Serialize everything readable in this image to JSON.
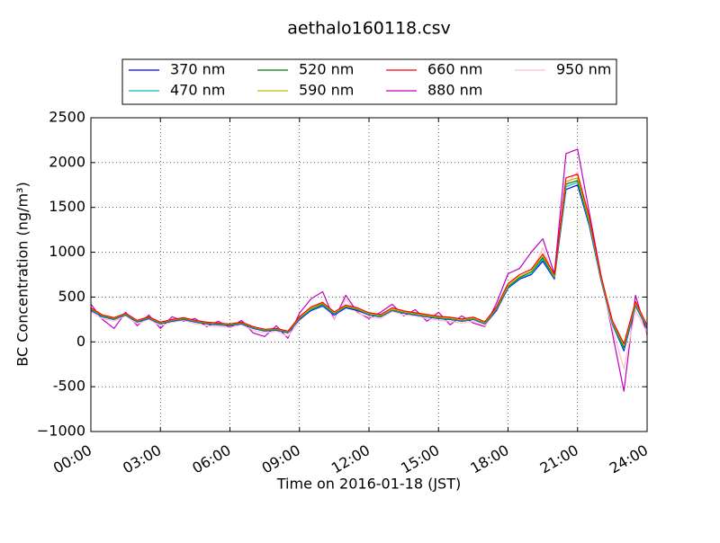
{
  "chart_data": {
    "type": "line",
    "title": "aethalo160118.csv",
    "x_label": "Time on 2016-01-18 (JST)",
    "y_label": "BC Concentration (ng/m³)",
    "x": [
      0,
      0.5,
      1,
      1.5,
      2,
      2.5,
      3,
      3.5,
      4,
      4.5,
      5,
      5.5,
      6,
      6.5,
      7,
      7.5,
      8,
      8.5,
      9,
      9.5,
      10,
      10.5,
      11,
      11.5,
      12,
      12.5,
      13,
      13.5,
      14,
      14.5,
      15,
      15.5,
      16,
      16.5,
      17,
      17.5,
      18,
      18.5,
      19,
      19.5,
      20,
      20.5,
      21,
      21.5,
      22,
      22.5,
      23,
      23.5,
      24
    ],
    "xlim": [
      0,
      24
    ],
    "xticks": [
      {
        "value": 0,
        "label": "00:00"
      },
      {
        "value": 3,
        "label": "03:00"
      },
      {
        "value": 6,
        "label": "06:00"
      },
      {
        "value": 9,
        "label": "09:00"
      },
      {
        "value": 12,
        "label": "12:00"
      },
      {
        "value": 15,
        "label": "15:00"
      },
      {
        "value": 18,
        "label": "18:00"
      },
      {
        "value": 21,
        "label": "21:00"
      },
      {
        "value": 24,
        "label": "24:00"
      }
    ],
    "ylim": [
      -1000,
      2500
    ],
    "yticks": [
      {
        "value": -1000,
        "label": "−1000"
      },
      -500,
      0,
      500,
      1000,
      1500,
      2000,
      2500
    ],
    "grid": true,
    "legend": "upper center",
    "series": [
      {
        "name": "370 nm",
        "color": "#0000ff",
        "values": [
          350,
          280,
          250,
          300,
          220,
          260,
          200,
          230,
          250,
          220,
          200,
          190,
          180,
          200,
          150,
          120,
          130,
          100,
          250,
          350,
          400,
          300,
          380,
          350,
          300,
          280,
          350,
          320,
          300,
          280,
          260,
          250,
          230,
          250,
          200,
          350,
          600,
          700,
          750,
          900,
          700,
          1700,
          1750,
          1300,
          700,
          200,
          -100,
          400,
          150
        ]
      },
      {
        "name": "470 nm",
        "color": "#00bfbf",
        "values": [
          360,
          285,
          255,
          305,
          225,
          265,
          205,
          235,
          255,
          225,
          205,
          195,
          185,
          205,
          155,
          125,
          135,
          105,
          260,
          360,
          410,
          310,
          390,
          360,
          305,
          285,
          355,
          325,
          305,
          285,
          265,
          255,
          235,
          255,
          205,
          360,
          610,
          710,
          760,
          920,
          710,
          1730,
          1780,
          1320,
          710,
          210,
          -80,
          410,
          160
        ]
      },
      {
        "name": "520 nm",
        "color": "#008000",
        "values": [
          365,
          290,
          260,
          310,
          230,
          270,
          210,
          240,
          260,
          230,
          210,
          200,
          190,
          210,
          160,
          130,
          140,
          110,
          265,
          370,
          420,
          320,
          395,
          365,
          310,
          290,
          360,
          330,
          310,
          290,
          270,
          260,
          240,
          260,
          210,
          370,
          620,
          720,
          780,
          940,
          720,
          1760,
          1800,
          1340,
          720,
          220,
          -60,
          420,
          170
        ]
      },
      {
        "name": "590 nm",
        "color": "#bfbf00",
        "values": [
          370,
          295,
          265,
          315,
          235,
          275,
          215,
          245,
          265,
          235,
          215,
          205,
          195,
          215,
          165,
          135,
          145,
          115,
          270,
          375,
          430,
          325,
          400,
          370,
          315,
          295,
          365,
          335,
          315,
          295,
          275,
          265,
          245,
          265,
          215,
          380,
          630,
          730,
          790,
          960,
          730,
          1790,
          1830,
          1360,
          730,
          225,
          -40,
          430,
          175
        ]
      },
      {
        "name": "660 nm",
        "color": "#ff0000",
        "values": [
          380,
          300,
          270,
          320,
          240,
          280,
          220,
          250,
          270,
          240,
          220,
          210,
          200,
          220,
          170,
          140,
          150,
          120,
          280,
          390,
          440,
          335,
          410,
          380,
          325,
          305,
          380,
          345,
          325,
          305,
          285,
          275,
          255,
          275,
          225,
          390,
          650,
          750,
          810,
          980,
          750,
          1830,
          1870,
          1400,
          750,
          240,
          -20,
          450,
          185
        ]
      },
      {
        "name": "880 nm",
        "color": "#bf00bf",
        "values": [
          420,
          250,
          150,
          330,
          180,
          300,
          150,
          280,
          230,
          260,
          170,
          230,
          160,
          240,
          100,
          60,
          180,
          40,
          320,
          480,
          560,
          250,
          520,
          330,
          260,
          330,
          420,
          290,
          360,
          230,
          330,
          190,
          290,
          210,
          170,
          430,
          760,
          820,
          1000,
          1150,
          760,
          2100,
          2150,
          1450,
          760,
          100,
          -550,
          520,
          80
        ]
      },
      {
        "name": "950 nm",
        "color": "#ffc0cb",
        "values": [
          330,
          260,
          230,
          290,
          200,
          250,
          180,
          220,
          240,
          200,
          180,
          170,
          160,
          190,
          130,
          100,
          120,
          60,
          230,
          380,
          450,
          250,
          480,
          320,
          280,
          260,
          340,
          300,
          290,
          260,
          240,
          230,
          210,
          230,
          180,
          340,
          620,
          700,
          760,
          1050,
          700,
          1750,
          1900,
          1350,
          700,
          150,
          -300,
          350,
          100
        ]
      }
    ]
  }
}
